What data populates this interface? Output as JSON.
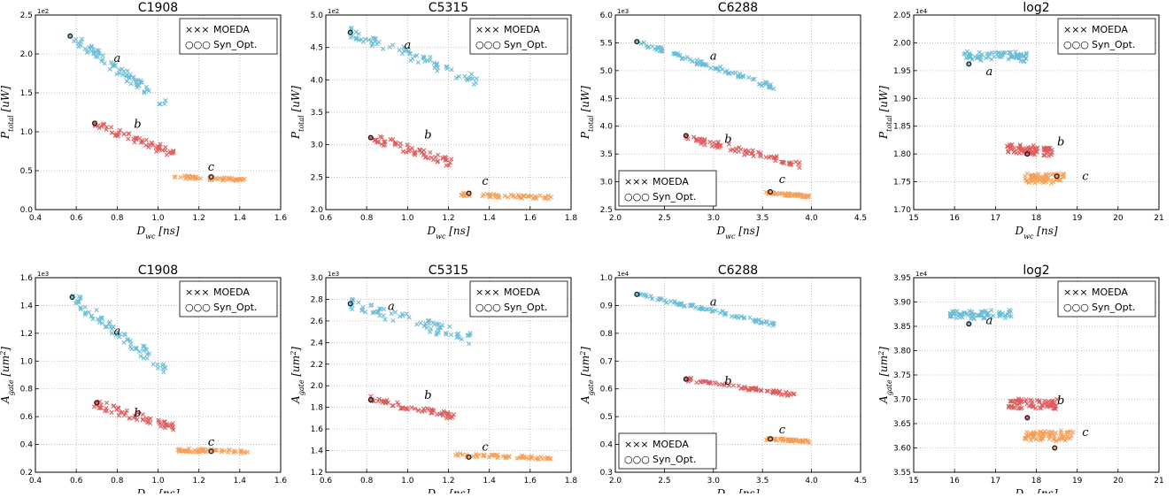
{
  "legend": {
    "markers_x": "×××",
    "markers_o": "○○○",
    "label_moeda": "MOEDA",
    "label_synopt": "Syn_Opt."
  },
  "colors": {
    "a": "#6bbcd6",
    "b": "#e05c5c",
    "c": "#f5a05a",
    "synopt": "#111111",
    "grid": "#b0b0b0"
  },
  "chart_data": [
    {
      "type": "scatter",
      "title": "C1908",
      "xlabel": "D_wc [ns]",
      "ylabel": "P_total [uW]",
      "xlim": [
        0.4,
        1.6
      ],
      "ylim": [
        0.0,
        2.5
      ],
      "xticks": [
        0.4,
        0.6,
        0.8,
        1.0,
        1.2,
        1.4,
        1.6
      ],
      "yticks": [
        0.0,
        0.5,
        1.0,
        1.5,
        2.0,
        2.5
      ],
      "ytick_decimals": 1,
      "xtick_decimals": 1,
      "exponent": "1e2",
      "legend_position": "top-right",
      "clusters": [
        {
          "label": "a",
          "x0": 0.57,
          "y0": 2.22,
          "x1": 1.05,
          "y1": 1.35,
          "spread": 0.07,
          "n": 70,
          "syn": [
            0.57,
            2.23
          ],
          "label_at": [
            0.8,
            1.9
          ]
        },
        {
          "label": "b",
          "x0": 0.69,
          "y0": 1.1,
          "x1": 1.08,
          "y1": 0.72,
          "spread": 0.05,
          "n": 60,
          "syn": [
            0.69,
            1.11
          ],
          "label_at": [
            0.9,
            1.05
          ]
        },
        {
          "label": "c",
          "x0": 1.08,
          "y0": 0.42,
          "x1": 1.42,
          "y1": 0.38,
          "spread": 0.02,
          "n": 55,
          "syn": [
            1.26,
            0.42
          ],
          "label_at": [
            1.26,
            0.5
          ]
        }
      ]
    },
    {
      "type": "scatter",
      "title": "C5315",
      "xlabel": "D_wc [ns]",
      "ylabel": "P_total [uW]",
      "xlim": [
        0.6,
        1.8
      ],
      "ylim": [
        2.0,
        5.0
      ],
      "xticks": [
        0.6,
        0.8,
        1.0,
        1.2,
        1.4,
        1.6,
        1.8
      ],
      "yticks": [
        2.0,
        2.5,
        3.0,
        3.5,
        4.0,
        4.5,
        5.0
      ],
      "ytick_decimals": 1,
      "xtick_decimals": 1,
      "exponent": "1e2",
      "legend_position": "top-right",
      "clusters": [
        {
          "label": "a",
          "x0": 0.72,
          "y0": 4.73,
          "x1": 1.35,
          "y1": 3.98,
          "spread": 0.08,
          "n": 70,
          "syn": [
            0.72,
            4.73
          ],
          "label_at": [
            1.0,
            4.48
          ]
        },
        {
          "label": "b",
          "x0": 0.82,
          "y0": 3.12,
          "x1": 1.22,
          "y1": 2.72,
          "spread": 0.06,
          "n": 60,
          "syn": [
            0.82,
            3.11
          ],
          "label_at": [
            1.1,
            3.1
          ]
        },
        {
          "label": "c",
          "x0": 1.22,
          "y0": 2.24,
          "x1": 1.7,
          "y1": 2.18,
          "spread": 0.03,
          "n": 55,
          "syn": [
            1.3,
            2.25
          ],
          "label_at": [
            1.38,
            2.38
          ]
        }
      ]
    },
    {
      "type": "scatter",
      "title": "C6288",
      "xlabel": "D_wc [ns]",
      "ylabel": "P_total [uW]",
      "xlim": [
        2.0,
        4.5
      ],
      "ylim": [
        2.5,
        6.0
      ],
      "xticks": [
        2.0,
        2.5,
        3.0,
        3.5,
        4.0,
        4.5
      ],
      "yticks": [
        2.5,
        3.0,
        3.5,
        4.0,
        4.5,
        5.0,
        5.5,
        6.0
      ],
      "ytick_decimals": 1,
      "xtick_decimals": 1,
      "exponent": "1e3",
      "legend_position": "bottom-left",
      "clusters": [
        {
          "label": "a",
          "x0": 2.22,
          "y0": 5.52,
          "x1": 3.65,
          "y1": 4.68,
          "spread": 0.04,
          "n": 80,
          "syn": [
            2.22,
            5.52
          ],
          "label_at": [
            3.0,
            5.2
          ]
        },
        {
          "label": "b",
          "x0": 2.72,
          "y0": 3.8,
          "x1": 3.9,
          "y1": 3.3,
          "spread": 0.05,
          "n": 70,
          "syn": [
            2.72,
            3.83
          ],
          "label_at": [
            3.15,
            3.7
          ]
        },
        {
          "label": "c",
          "x0": 3.55,
          "y0": 2.8,
          "x1": 3.98,
          "y1": 2.74,
          "spread": 0.02,
          "n": 50,
          "syn": [
            3.58,
            2.82
          ],
          "label_at": [
            3.7,
            2.98
          ]
        }
      ]
    },
    {
      "type": "scatter",
      "title": "log2",
      "xlabel": "D_wc [ns]",
      "ylabel": "P_total [uW]",
      "xlim": [
        15,
        21
      ],
      "ylim": [
        1.7,
        2.05
      ],
      "xticks": [
        15,
        16,
        17,
        18,
        19,
        20,
        21
      ],
      "yticks": [
        1.7,
        1.75,
        1.8,
        1.85,
        1.9,
        1.95,
        2.0,
        2.05
      ],
      "ytick_decimals": 2,
      "xtick_decimals": 0,
      "exponent": "1e4",
      "legend_position": "top-right",
      "clusters": [
        {
          "label": "a",
          "x0": 16.2,
          "y0": 1.975,
          "x1": 17.8,
          "y1": 1.975,
          "spread": 0.008,
          "n": 70,
          "syn": [
            16.35,
            1.962
          ],
          "label_at": [
            16.85,
            1.942
          ]
        },
        {
          "label": "b",
          "x0": 17.3,
          "y0": 1.808,
          "x1": 18.4,
          "y1": 1.805,
          "spread": 0.008,
          "n": 75,
          "syn": [
            17.78,
            1.8
          ],
          "label_at": [
            18.6,
            1.815
          ]
        },
        {
          "label": "c",
          "x0": 17.7,
          "y0": 1.757,
          "x1": 18.7,
          "y1": 1.757,
          "spread": 0.008,
          "n": 70,
          "syn": [
            18.5,
            1.76
          ],
          "label_at": [
            19.2,
            1.753
          ]
        }
      ]
    },
    {
      "type": "scatter",
      "title": "C1908",
      "xlabel": "D_wc [ns]",
      "ylabel": "A_gate [um^2]",
      "xlim": [
        0.4,
        1.6
      ],
      "ylim": [
        0.2,
        1.6
      ],
      "xticks": [
        0.4,
        0.6,
        0.8,
        1.0,
        1.2,
        1.4,
        1.6
      ],
      "yticks": [
        0.2,
        0.4,
        0.6,
        0.8,
        1.0,
        1.2,
        1.4,
        1.6
      ],
      "ytick_decimals": 1,
      "xtick_decimals": 1,
      "exponent": "1e3",
      "legend_position": "top-right",
      "clusters": [
        {
          "label": "a",
          "x0": 0.58,
          "y0": 1.45,
          "x1": 1.05,
          "y1": 0.93,
          "spread": 0.05,
          "n": 70,
          "syn": [
            0.58,
            1.46
          ],
          "label_at": [
            0.8,
            1.19
          ]
        },
        {
          "label": "b",
          "x0": 0.69,
          "y0": 0.69,
          "x1": 1.08,
          "y1": 0.52,
          "spread": 0.03,
          "n": 60,
          "syn": [
            0.7,
            0.7
          ],
          "label_at": [
            0.9,
            0.6
          ]
        },
        {
          "label": "c",
          "x0": 1.08,
          "y0": 0.36,
          "x1": 1.44,
          "y1": 0.35,
          "spread": 0.012,
          "n": 55,
          "syn": [
            1.26,
            0.35
          ],
          "label_at": [
            1.26,
            0.39
          ]
        }
      ]
    },
    {
      "type": "scatter",
      "title": "C5315",
      "xlabel": "D_wc [ns]",
      "ylabel": "A_gate [um^2]",
      "xlim": [
        0.6,
        1.8
      ],
      "ylim": [
        1.2,
        3.0
      ],
      "xticks": [
        0.6,
        0.8,
        1.0,
        1.2,
        1.4,
        1.6,
        1.8
      ],
      "yticks": [
        1.2,
        1.4,
        1.6,
        1.8,
        2.0,
        2.2,
        2.4,
        2.6,
        2.8,
        3.0
      ],
      "ytick_decimals": 1,
      "xtick_decimals": 1,
      "exponent": "1e3",
      "legend_position": "top-right",
      "clusters": [
        {
          "label": "a",
          "x0": 0.72,
          "y0": 2.76,
          "x1": 1.35,
          "y1": 2.42,
          "spread": 0.05,
          "n": 70,
          "syn": [
            0.72,
            2.76
          ],
          "label_at": [
            0.92,
            2.7
          ]
        },
        {
          "label": "b",
          "x0": 0.82,
          "y0": 1.88,
          "x1": 1.22,
          "y1": 1.72,
          "spread": 0.03,
          "n": 60,
          "syn": [
            0.82,
            1.87
          ],
          "label_at": [
            1.1,
            1.88
          ]
        },
        {
          "label": "c",
          "x0": 1.22,
          "y0": 1.36,
          "x1": 1.72,
          "y1": 1.33,
          "spread": 0.015,
          "n": 55,
          "syn": [
            1.3,
            1.34
          ],
          "label_at": [
            1.38,
            1.4
          ]
        }
      ]
    },
    {
      "type": "scatter",
      "title": "C6288",
      "xlabel": "D_wc [ns]",
      "ylabel": "A_gate [um^2]",
      "xlim": [
        2.0,
        4.5
      ],
      "ylim": [
        0.3,
        1.0
      ],
      "xticks": [
        2.0,
        2.5,
        3.0,
        3.5,
        4.0,
        4.5
      ],
      "yticks": [
        0.3,
        0.4,
        0.5,
        0.6,
        0.7,
        0.8,
        0.9,
        1.0
      ],
      "ytick_decimals": 1,
      "xtick_decimals": 1,
      "exponent": "1e4",
      "legend_position": "bottom-left",
      "clusters": [
        {
          "label": "a",
          "x0": 2.22,
          "y0": 0.94,
          "x1": 3.65,
          "y1": 0.83,
          "spread": 0.006,
          "n": 80,
          "syn": [
            2.22,
            0.94
          ],
          "label_at": [
            3.0,
            0.9
          ]
        },
        {
          "label": "b",
          "x0": 2.72,
          "y0": 0.635,
          "x1": 3.9,
          "y1": 0.575,
          "spread": 0.006,
          "n": 70,
          "syn": [
            2.72,
            0.635
          ],
          "label_at": [
            3.15,
            0.615
          ]
        },
        {
          "label": "c",
          "x0": 3.55,
          "y0": 0.42,
          "x1": 3.98,
          "y1": 0.41,
          "spread": 0.004,
          "n": 50,
          "syn": [
            3.58,
            0.42
          ],
          "label_at": [
            3.7,
            0.44
          ]
        }
      ]
    },
    {
      "type": "scatter",
      "title": "log2",
      "xlabel": "D_wc [ns]",
      "ylabel": "A_gate [um^2]",
      "xlim": [
        15,
        21
      ],
      "ylim": [
        3.55,
        3.95
      ],
      "xticks": [
        15,
        16,
        17,
        18,
        19,
        20,
        21
      ],
      "yticks": [
        3.55,
        3.6,
        3.65,
        3.7,
        3.75,
        3.8,
        3.85,
        3.9,
        3.95
      ],
      "ytick_decimals": 2,
      "xtick_decimals": 0,
      "exponent": "1e4",
      "legend_position": "top-right",
      "clusters": [
        {
          "label": "a",
          "x0": 15.9,
          "y0": 3.875,
          "x1": 17.4,
          "y1": 3.875,
          "spread": 0.008,
          "n": 70,
          "syn": [
            16.35,
            3.855
          ],
          "label_at": [
            16.85,
            3.855
          ]
        },
        {
          "label": "b",
          "x0": 17.3,
          "y0": 3.69,
          "x1": 18.5,
          "y1": 3.69,
          "spread": 0.01,
          "n": 75,
          "syn": [
            17.78,
            3.662
          ],
          "label_at": [
            18.6,
            3.69
          ]
        },
        {
          "label": "c",
          "x0": 17.7,
          "y0": 3.625,
          "x1": 18.9,
          "y1": 3.625,
          "spread": 0.01,
          "n": 70,
          "syn": [
            18.45,
            3.6
          ],
          "label_at": [
            19.2,
            3.625
          ]
        }
      ]
    }
  ]
}
